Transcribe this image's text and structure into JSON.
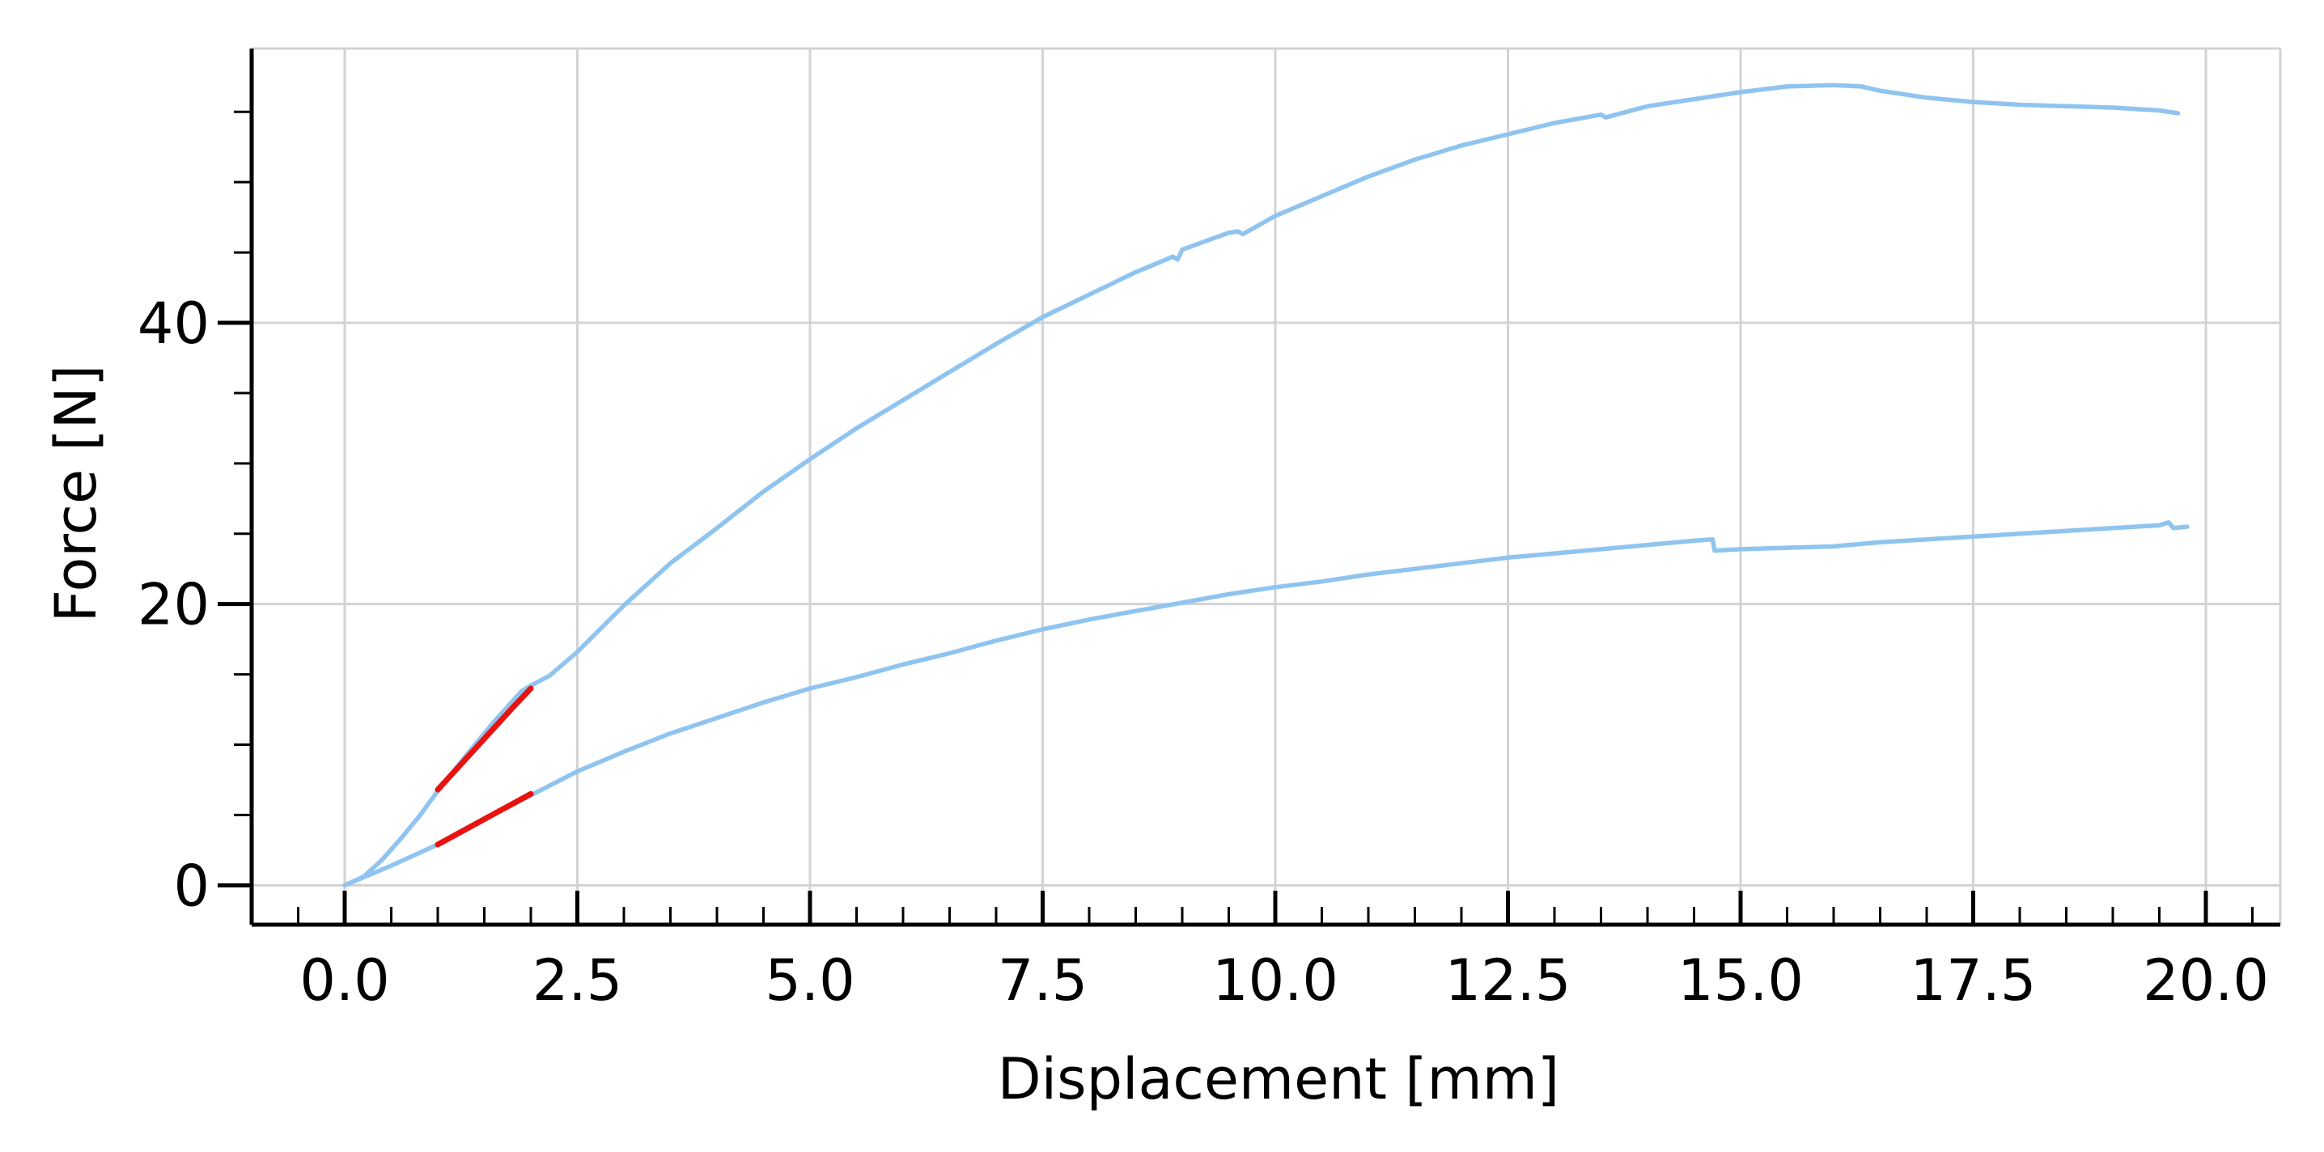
{
  "chart_data": {
    "type": "line",
    "title": "",
    "xlabel": "Displacement [mm]",
    "ylabel": "Force [N]",
    "xlim": [
      -1.0,
      20.8
    ],
    "ylim": [
      -2.8,
      59.5
    ],
    "xticks": [
      0.0,
      2.5,
      5.0,
      7.5,
      10.0,
      12.5,
      15.0,
      17.5,
      20.0
    ],
    "xtick_labels": [
      "0.0",
      "2.5",
      "5.0",
      "7.5",
      "10.0",
      "12.5",
      "15.0",
      "17.5",
      "20.0"
    ],
    "yticks": [
      0,
      20,
      40
    ],
    "ytick_labels": [
      "0",
      "20",
      "40"
    ],
    "x_minor_step": 0.5,
    "y_minor_step": 5,
    "grid": true,
    "legend": false,
    "colors": {
      "curve": "#90c4f0",
      "fit": "#e8120f",
      "grid": "#d3d3d3",
      "axis": "#000000"
    },
    "series": [
      {
        "role": "curve",
        "x": [
          0.0,
          0.2,
          0.4,
          0.6,
          0.8,
          1.0,
          1.3,
          1.6,
          1.9,
          2.0,
          2.2,
          2.5,
          3.0,
          3.5,
          4.0,
          4.5,
          5.0,
          5.5,
          6.0,
          6.5,
          7.0,
          7.5,
          8.0,
          8.5,
          8.9,
          8.95,
          9.0,
          9.5,
          9.6,
          9.65,
          10.0,
          10.5,
          11.0,
          11.5,
          12.0,
          12.5,
          13.0,
          13.5,
          13.55,
          14.0,
          14.5,
          15.0,
          15.5,
          16.0,
          16.3,
          16.5,
          17.0,
          17.5,
          18.0,
          18.5,
          19.0,
          19.5,
          19.7
        ],
        "y": [
          0.0,
          0.6,
          1.8,
          3.3,
          4.9,
          6.7,
          9.2,
          11.6,
          13.8,
          14.2,
          14.9,
          16.6,
          19.9,
          22.9,
          25.4,
          28.0,
          30.3,
          32.5,
          34.5,
          36.5,
          38.5,
          40.4,
          42.0,
          43.6,
          44.7,
          44.5,
          45.2,
          46.4,
          46.5,
          46.3,
          47.6,
          49.0,
          50.4,
          51.6,
          52.6,
          53.4,
          54.2,
          54.8,
          54.6,
          55.4,
          55.9,
          56.4,
          56.8,
          56.9,
          56.8,
          56.5,
          56.0,
          55.7,
          55.5,
          55.4,
          55.3,
          55.1,
          54.9
        ]
      },
      {
        "role": "curve",
        "x": [
          0.0,
          0.5,
          1.0,
          1.5,
          2.0,
          2.5,
          3.0,
          3.5,
          4.0,
          4.5,
          5.0,
          5.5,
          6.0,
          6.5,
          7.0,
          7.5,
          8.0,
          8.5,
          9.0,
          9.5,
          10.0,
          10.5,
          11.0,
          11.5,
          12.0,
          12.5,
          13.0,
          13.5,
          14.0,
          14.5,
          14.7,
          14.72,
          15.0,
          15.5,
          16.0,
          16.5,
          17.0,
          17.5,
          18.0,
          18.5,
          19.0,
          19.5,
          19.6,
          19.65,
          19.8
        ],
        "y": [
          0.0,
          1.4,
          2.9,
          4.7,
          6.4,
          8.1,
          9.5,
          10.8,
          11.9,
          13.0,
          14.0,
          14.8,
          15.7,
          16.5,
          17.4,
          18.2,
          18.9,
          19.5,
          20.1,
          20.7,
          21.2,
          21.6,
          22.1,
          22.5,
          22.9,
          23.3,
          23.6,
          23.9,
          24.2,
          24.5,
          24.6,
          23.8,
          23.9,
          24.0,
          24.1,
          24.4,
          24.6,
          24.8,
          25.0,
          25.2,
          25.4,
          25.6,
          25.8,
          25.4,
          25.5
        ]
      },
      {
        "role": "fit",
        "x": [
          1.0,
          1.4,
          1.8,
          2.0
        ],
        "y": [
          6.8,
          9.7,
          12.6,
          14.0
        ]
      },
      {
        "role": "fit",
        "x": [
          1.0,
          1.5,
          2.0
        ],
        "y": [
          2.9,
          4.7,
          6.5
        ]
      }
    ]
  }
}
